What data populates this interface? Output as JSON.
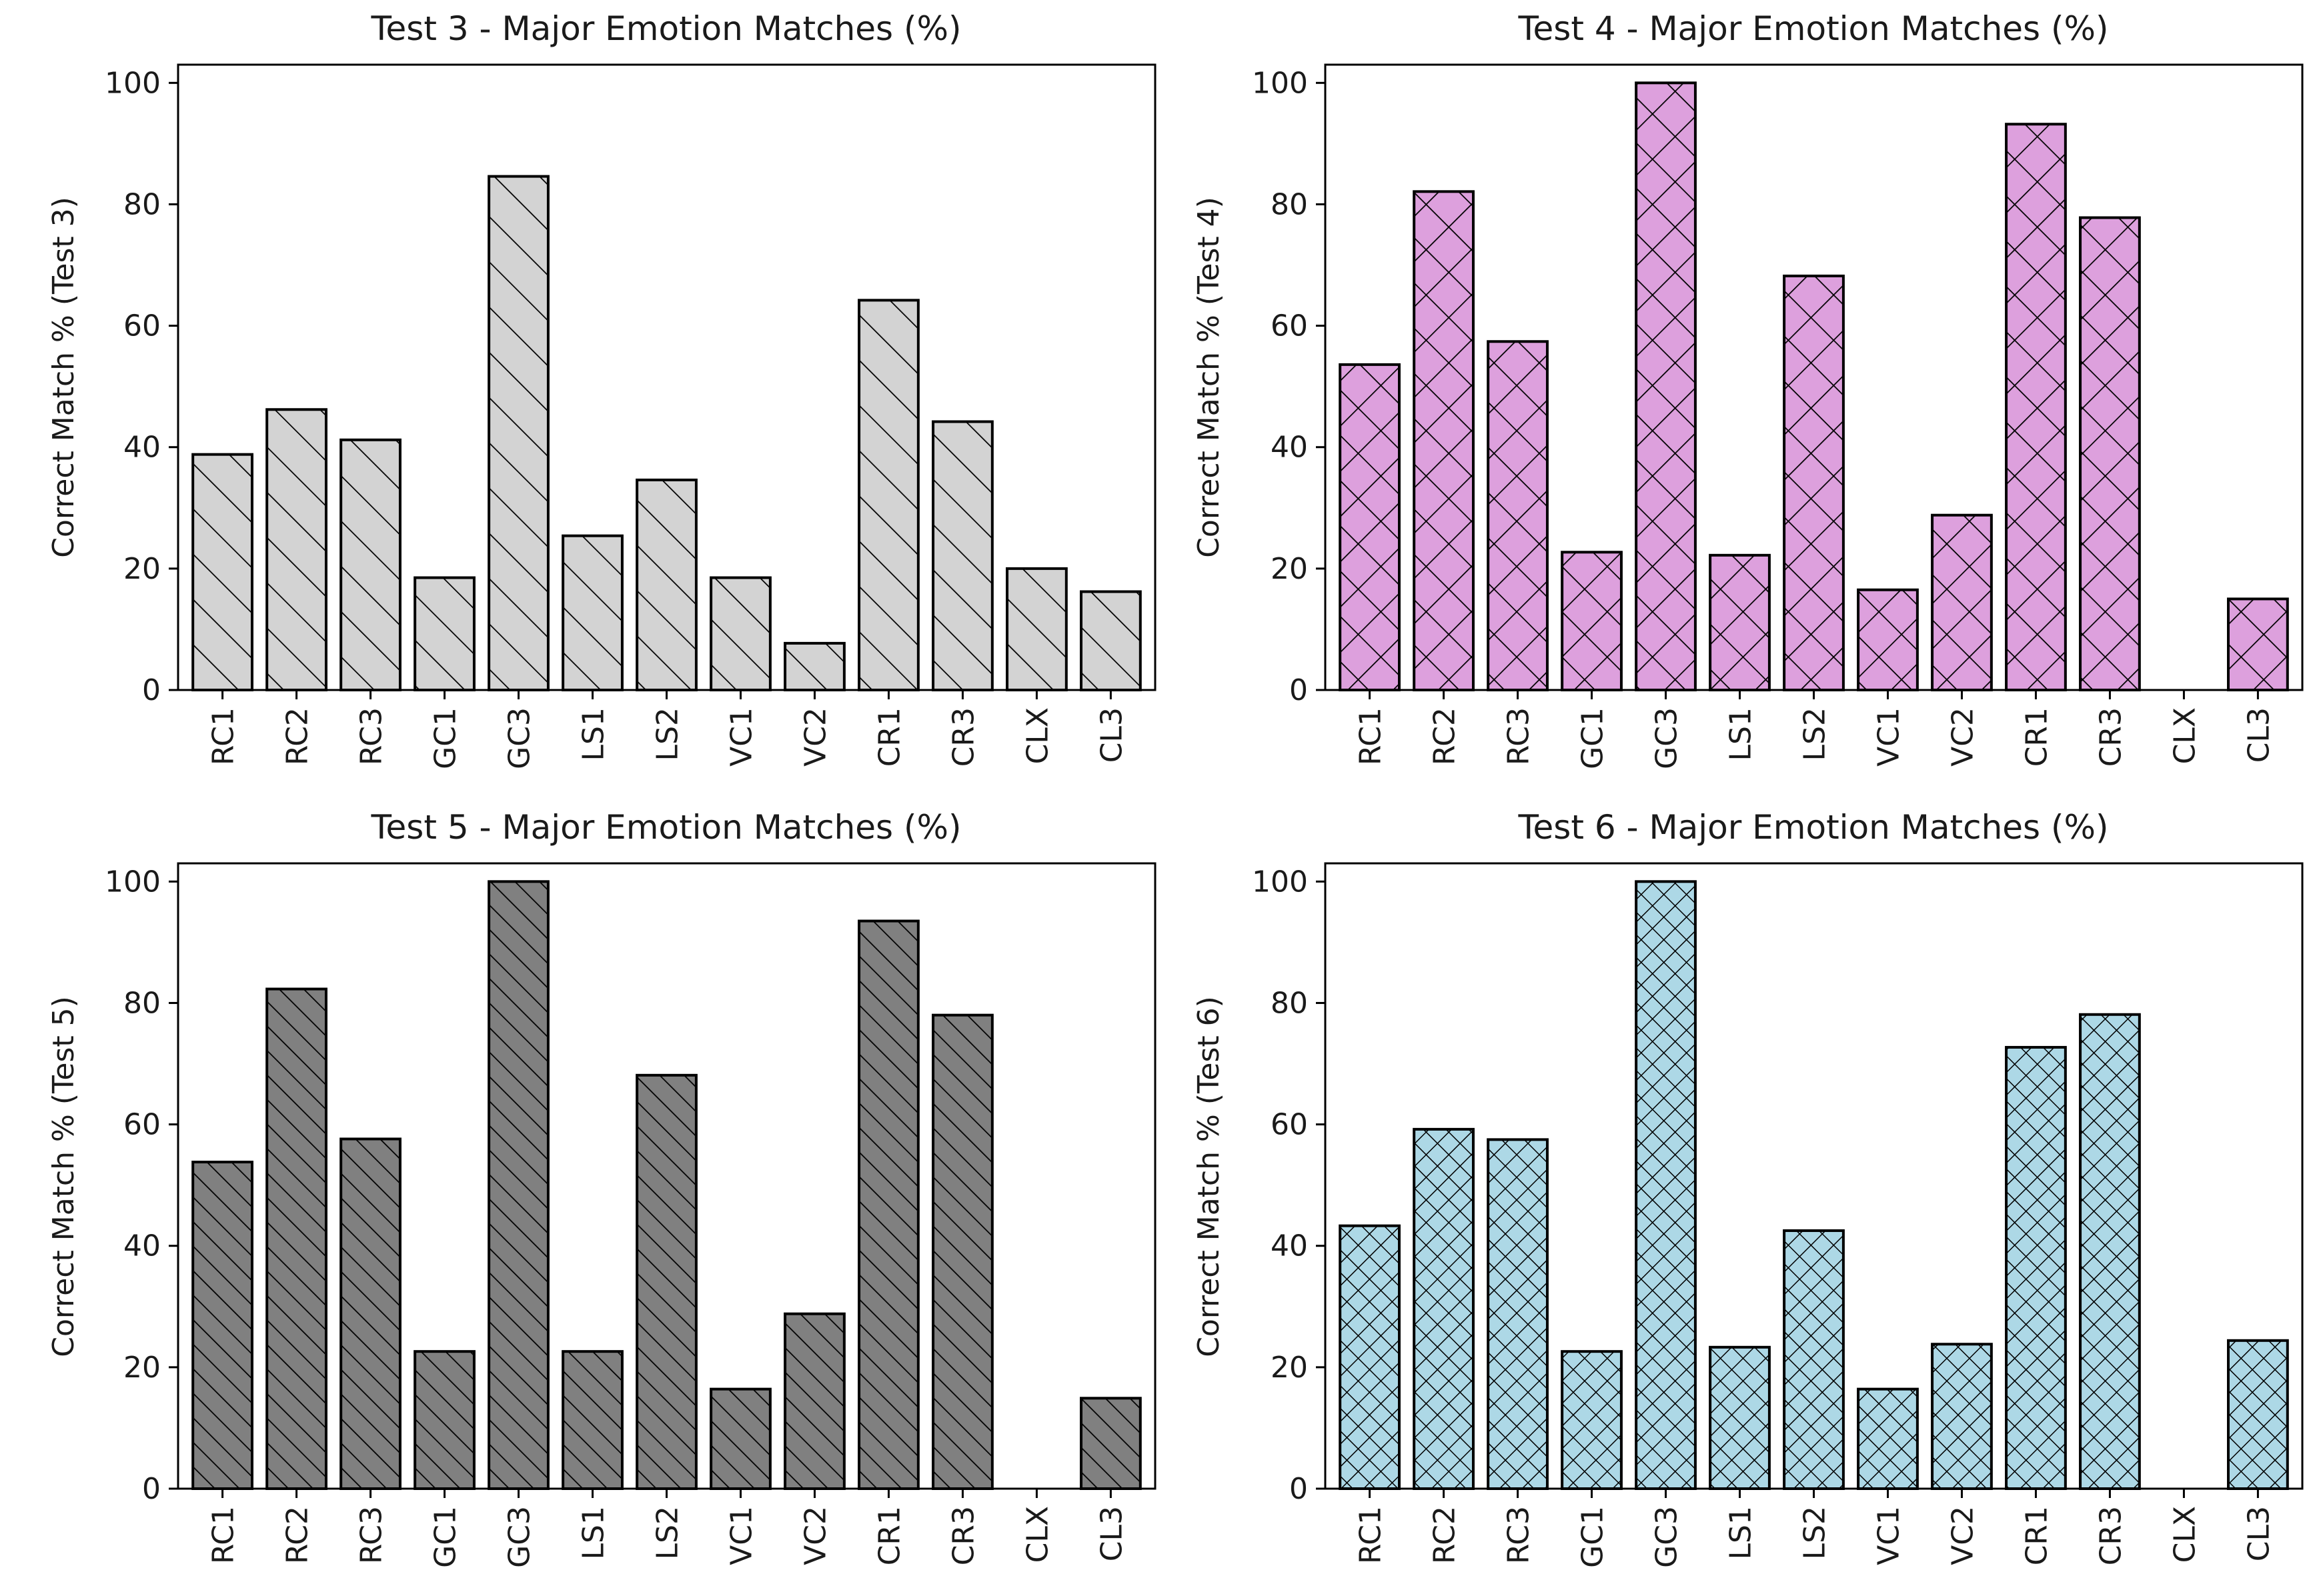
{
  "figure": {
    "background": "#ffffff"
  },
  "chart_data": [
    {
      "type": "bar",
      "title": "Test 3 - Major Emotion Matches (%)",
      "xlabel": "",
      "ylabel": "Correct Match % (Test 3)",
      "ylim": [
        0,
        103
      ],
      "yticks": [
        "0",
        "20",
        "40",
        "60",
        "80",
        "100"
      ],
      "categories": [
        "RC1",
        "RC2",
        "RC3",
        "GC1",
        "GC3",
        "LS1",
        "LS2",
        "VC1",
        "VC2",
        "CR1",
        "CR3",
        "CLX",
        "CL3"
      ],
      "values": [
        38.8,
        46.2,
        41.2,
        18.5,
        84.6,
        25.4,
        34.6,
        18.5,
        7.7,
        64.2,
        44.2,
        20.0,
        16.2
      ],
      "fill": "#d3d3d3",
      "hatch": "backslash",
      "grid": false,
      "legend": "none"
    },
    {
      "type": "bar",
      "title": "Test 4 - Major Emotion Matches (%)",
      "xlabel": "",
      "ylabel": "Correct Match % (Test 4)",
      "ylim": [
        0,
        103
      ],
      "yticks": [
        "0",
        "20",
        "40",
        "60",
        "80",
        "100"
      ],
      "categories": [
        "RC1",
        "RC2",
        "RC3",
        "GC1",
        "GC3",
        "LS1",
        "LS2",
        "VC1",
        "VC2",
        "CR1",
        "CR3",
        "CLX",
        "CL3"
      ],
      "values": [
        53.6,
        82.1,
        57.4,
        22.7,
        100,
        22.2,
        68.2,
        16.5,
        28.8,
        93.2,
        77.8,
        0,
        15.0
      ],
      "fill": "#dda0dd",
      "hatch": "cross",
      "grid": false,
      "legend": "none"
    },
    {
      "type": "bar",
      "title": "Test 5 - Major Emotion Matches (%)",
      "xlabel": "",
      "ylabel": "Correct Match % (Test 5)",
      "ylim": [
        0,
        103
      ],
      "yticks": [
        "0",
        "20",
        "40",
        "60",
        "80",
        "100"
      ],
      "categories": [
        "RC1",
        "RC2",
        "RC3",
        "GC1",
        "GC3",
        "LS1",
        "LS2",
        "VC1",
        "VC2",
        "CR1",
        "CR3",
        "CLX",
        "CL3"
      ],
      "values": [
        53.8,
        82.3,
        57.6,
        22.6,
        100,
        22.6,
        68.1,
        16.4,
        28.8,
        93.5,
        78.0,
        0,
        14.9
      ],
      "fill": "#808080",
      "hatch": "dense-backslash",
      "grid": false,
      "legend": "none"
    },
    {
      "type": "bar",
      "title": "Test 6 - Major Emotion Matches (%)",
      "xlabel": "",
      "ylabel": "Correct Match % (Test 6)",
      "ylim": [
        0,
        103
      ],
      "yticks": [
        "0",
        "20",
        "40",
        "60",
        "80",
        "100"
      ],
      "categories": [
        "RC1",
        "RC2",
        "RC3",
        "GC1",
        "GC3",
        "LS1",
        "LS2",
        "VC1",
        "VC2",
        "CR1",
        "CR3",
        "CLX",
        "CL3"
      ],
      "values": [
        43.3,
        59.2,
        57.5,
        22.6,
        100,
        23.3,
        42.5,
        16.4,
        23.8,
        72.7,
        78.1,
        0,
        24.4
      ],
      "fill": "#add8e6",
      "hatch": "dense-cross",
      "grid": false,
      "legend": "none"
    }
  ]
}
